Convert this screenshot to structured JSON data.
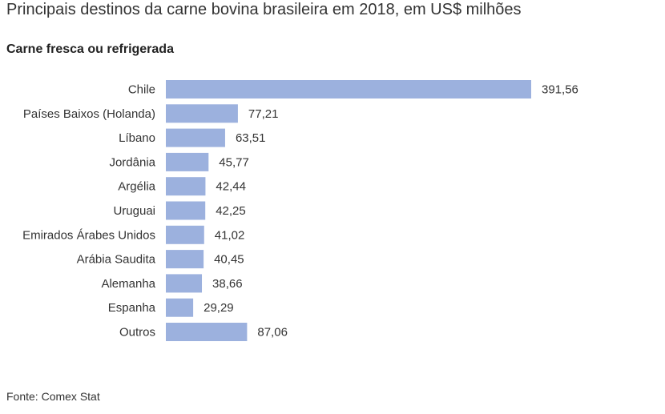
{
  "title": "Principais destinos da carne bovina brasileira em 2018, em US$ milhões",
  "subtitle": "Carne fresca ou refrigerada",
  "source": "Fonte: Comex Stat",
  "colors": {
    "bar": "#9cb1de",
    "text": "#333333"
  },
  "chart_data": {
    "type": "bar",
    "orientation": "horizontal",
    "title": "Principais destinos da carne bovina brasileira em 2018, em US$ milhões",
    "subtitle": "Carne fresca ou refrigerada",
    "categories": [
      "Chile",
      "Países Baixos (Holanda)",
      "Líbano",
      "Jordânia",
      "Argélia",
      "Uruguai",
      "Emirados Árabes Unidos",
      "Arábia Saudita",
      "Alemanha",
      "Espanha",
      "Outros"
    ],
    "values": [
      391.56,
      77.21,
      63.51,
      45.77,
      42.44,
      42.25,
      41.02,
      40.45,
      38.66,
      29.29,
      87.06
    ],
    "labels": [
      "391,56",
      "77,21",
      "63,51",
      "45,77",
      "42,44",
      "42,25",
      "41,02",
      "40,45",
      "38,66",
      "29,29",
      "87,06"
    ],
    "xlim": [
      0,
      391.56
    ],
    "grid": false,
    "legend": "none"
  }
}
